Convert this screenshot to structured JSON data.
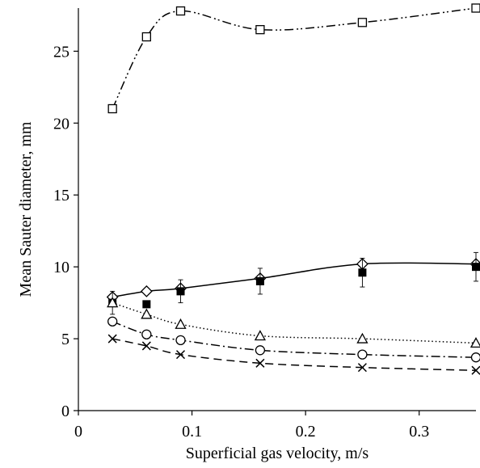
{
  "chart_data": {
    "type": "scatter",
    "title": "",
    "xlabel": "Superficial gas velocity, m/s",
    "ylabel": "Mean Sauter diameter, mm",
    "xlim": [
      0,
      0.35
    ],
    "ylim": [
      0,
      28
    ],
    "x_ticks": [
      0,
      0.1,
      0.2,
      0.3
    ],
    "x_tick_labels": [
      "0",
      "0.1",
      "0.2",
      "0.3"
    ],
    "y_ticks": [
      0,
      5,
      10,
      15,
      20,
      25
    ],
    "y_tick_labels": [
      "0",
      "5",
      "10",
      "15",
      "20",
      "25"
    ],
    "grid": false,
    "legend": "none",
    "series": [
      {
        "marker": "open-square",
        "line": "dash-dot-dot",
        "x": [
          0.03,
          0.06,
          0.09,
          0.16,
          0.25,
          0.35
        ],
        "values": [
          21.0,
          26.0,
          27.8,
          26.5,
          27.0,
          28.0
        ]
      },
      {
        "marker": "open-diamond",
        "line": "solid",
        "x": [
          0.03,
          0.06,
          0.09,
          0.16,
          0.25,
          0.35
        ],
        "values": [
          7.9,
          8.3,
          8.5,
          9.2,
          10.2,
          10.2
        ]
      },
      {
        "marker": "filled-square",
        "line": "none",
        "x": [
          0.03,
          0.06,
          0.09,
          0.16,
          0.25,
          0.35
        ],
        "values": [
          7.5,
          7.4,
          8.3,
          9.0,
          9.6,
          10.0
        ],
        "error": [
          0.8,
          0,
          0.8,
          0.9,
          1.0,
          1.0
        ]
      },
      {
        "marker": "open-triangle",
        "line": "dotted",
        "x": [
          0.03,
          0.06,
          0.09,
          0.16,
          0.25,
          0.35
        ],
        "values": [
          7.5,
          6.7,
          6.0,
          5.2,
          5.0,
          4.7
        ]
      },
      {
        "marker": "open-circle",
        "line": "dash-dot",
        "x": [
          0.03,
          0.06,
          0.09,
          0.16,
          0.25,
          0.35
        ],
        "values": [
          6.2,
          5.3,
          4.9,
          4.2,
          3.9,
          3.7
        ]
      },
      {
        "marker": "x",
        "line": "dashed",
        "x": [
          0.03,
          0.06,
          0.09,
          0.16,
          0.25,
          0.35
        ],
        "values": [
          5.0,
          4.5,
          3.9,
          3.3,
          3.0,
          2.8
        ]
      }
    ]
  }
}
